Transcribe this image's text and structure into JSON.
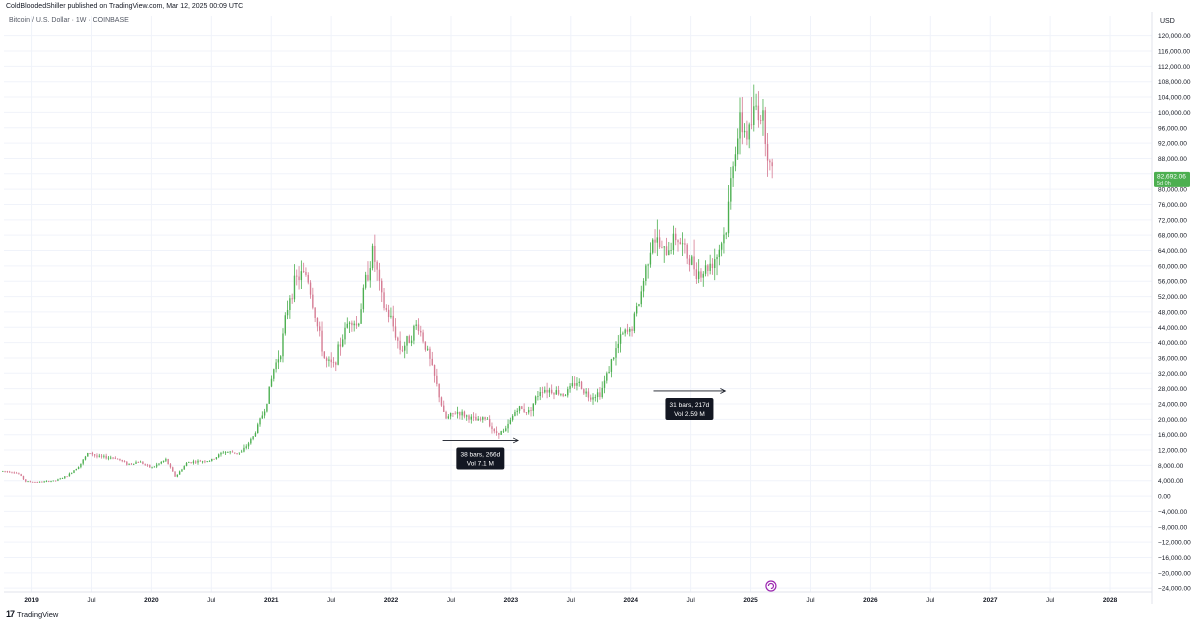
{
  "header": {
    "publish_line": "ColdBloodedShiller published on TradingView.com, Mar 12, 2025 00:09 UTC",
    "symbol_line": "Bitcoin / U.S. Dollar · 1W · COINBASE",
    "currency": "USD"
  },
  "footer": {
    "brand": "TradingView",
    "brand_icon": "tradingview-logo-icon"
  },
  "colors": {
    "up": "#4caf50",
    "down": "#d57a92",
    "price_badge": "#4caf50",
    "grid": "#f0f3fa",
    "measure": "#131722"
  },
  "chart_data": {
    "type": "candlestick",
    "symbol": "BTCUSD",
    "interval": "1W",
    "exchange": "COINBASE",
    "y_axis": {
      "min": -25000,
      "max": 122000,
      "ticks": [
        120000,
        116000,
        112000,
        108000,
        104000,
        100000,
        96000,
        92000,
        88000,
        84000,
        80000,
        76000,
        72000,
        68000,
        64000,
        60000,
        56000,
        52000,
        48000,
        44000,
        40000,
        36000,
        32000,
        28000,
        24000,
        20000,
        16000,
        12000,
        8000,
        4000,
        0,
        -4000,
        -8000,
        -12000,
        -16000,
        -20000,
        -24000
      ],
      "tick_labels": [
        "120,000.00",
        "116,000.00",
        "112,000.00",
        "108,000.00",
        "104,000.00",
        "100,000.00",
        "96,000.00",
        "92,000.00",
        "88,000.00",
        "84,000.00",
        "80,000.00",
        "76,000.00",
        "72,000.00",
        "68,000.00",
        "64,000.00",
        "60,000.00",
        "56,000.00",
        "52,000.00",
        "48,000.00",
        "44,000.00",
        "40,000.00",
        "36,000.00",
        "32,000.00",
        "28,000.00",
        "24,000.00",
        "20,000.00",
        "16,000.00",
        "12,000.00",
        "8,000.00",
        "4,000.00",
        "0.00",
        "−4,000.00",
        "−8,000.00",
        "−12,000.00",
        "−16,000.00",
        "−20,000.00",
        "−24,000.00"
      ]
    },
    "x_axis": {
      "ticks": [
        {
          "t": 2019.0,
          "label": "2019",
          "bold": true
        },
        {
          "t": 2019.5,
          "label": "Jul",
          "bold": false
        },
        {
          "t": 2020.0,
          "label": "2020",
          "bold": true
        },
        {
          "t": 2020.5,
          "label": "Jul",
          "bold": false
        },
        {
          "t": 2021.0,
          "label": "2021",
          "bold": true
        },
        {
          "t": 2021.5,
          "label": "Jul",
          "bold": false
        },
        {
          "t": 2022.0,
          "label": "2022",
          "bold": true
        },
        {
          "t": 2022.5,
          "label": "Jul",
          "bold": false
        },
        {
          "t": 2023.0,
          "label": "2023",
          "bold": true
        },
        {
          "t": 2023.5,
          "label": "Jul",
          "bold": false
        },
        {
          "t": 2024.0,
          "label": "2024",
          "bold": true
        },
        {
          "t": 2024.5,
          "label": "Jul",
          "bold": false
        },
        {
          "t": 2025.0,
          "label": "2025",
          "bold": true
        },
        {
          "t": 2025.5,
          "label": "Jul",
          "bold": false
        },
        {
          "t": 2026.0,
          "label": "2026",
          "bold": true
        },
        {
          "t": 2026.5,
          "label": "Jul",
          "bold": false
        },
        {
          "t": 2027.0,
          "label": "2027",
          "bold": true
        },
        {
          "t": 2027.5,
          "label": "Jul",
          "bold": false
        },
        {
          "t": 2028.0,
          "label": "2028",
          "bold": true
        }
      ]
    },
    "price_path": [
      [
        2018.76,
        6500
      ],
      [
        2018.85,
        6300
      ],
      [
        2018.9,
        5600
      ],
      [
        2018.95,
        3800
      ],
      [
        2019.05,
        3600
      ],
      [
        2019.2,
        4000
      ],
      [
        2019.3,
        5300
      ],
      [
        2019.4,
        8000
      ],
      [
        2019.48,
        11500
      ],
      [
        2019.55,
        10200
      ],
      [
        2019.7,
        10000
      ],
      [
        2019.8,
        8300
      ],
      [
        2019.9,
        9000
      ],
      [
        2020.0,
        7300
      ],
      [
        2020.12,
        9500
      ],
      [
        2020.2,
        5000
      ],
      [
        2020.3,
        8800
      ],
      [
        2020.5,
        9300
      ],
      [
        2020.6,
        11500
      ],
      [
        2020.75,
        11300
      ],
      [
        2020.85,
        15500
      ],
      [
        2020.95,
        23000
      ],
      [
        2021.02,
        33000
      ],
      [
        2021.08,
        38000
      ],
      [
        2021.15,
        52000
      ],
      [
        2021.22,
        57000
      ],
      [
        2021.3,
        58000
      ],
      [
        2021.38,
        45000
      ],
      [
        2021.45,
        35000
      ],
      [
        2021.52,
        34000
      ],
      [
        2021.58,
        40000
      ],
      [
        2021.66,
        47000
      ],
      [
        2021.72,
        44000
      ],
      [
        2021.78,
        55000
      ],
      [
        2021.85,
        64000
      ],
      [
        2021.93,
        50000
      ],
      [
        2022.0,
        46000
      ],
      [
        2022.08,
        38000
      ],
      [
        2022.15,
        41000
      ],
      [
        2022.22,
        45000
      ],
      [
        2022.3,
        38000
      ],
      [
        2022.38,
        29000
      ],
      [
        2022.45,
        20000
      ],
      [
        2022.55,
        22000
      ],
      [
        2022.62,
        21000
      ],
      [
        2022.72,
        19500
      ],
      [
        2022.8,
        20500
      ],
      [
        2022.86,
        16500
      ],
      [
        2022.95,
        16800
      ],
      [
        2023.05,
        23000
      ],
      [
        2023.15,
        22000
      ],
      [
        2023.25,
        28000
      ],
      [
        2023.35,
        27500
      ],
      [
        2023.45,
        26500
      ],
      [
        2023.55,
        30000
      ],
      [
        2023.65,
        26000
      ],
      [
        2023.75,
        27000
      ],
      [
        2023.85,
        36000
      ],
      [
        2023.93,
        42000
      ],
      [
        2024.0,
        43000
      ],
      [
        2024.08,
        52000
      ],
      [
        2024.18,
        68000
      ],
      [
        2024.28,
        63000
      ],
      [
        2024.38,
        68000
      ],
      [
        2024.48,
        62000
      ],
      [
        2024.58,
        58000
      ],
      [
        2024.65,
        60000
      ],
      [
        2024.72,
        63000
      ],
      [
        2024.8,
        70000
      ],
      [
        2024.86,
        90000
      ],
      [
        2024.92,
        97000
      ],
      [
        2024.98,
        94000
      ],
      [
        2025.05,
        102000
      ],
      [
        2025.11,
        98000
      ],
      [
        2025.17,
        84000
      ],
      [
        2025.19,
        82692
      ]
    ],
    "last_price": {
      "value": 82692.06,
      "label": "82,692.06",
      "sub_label": "5d 0h"
    },
    "measurements": [
      {
        "from": 2022.43,
        "to": 2023.06,
        "price_level": 14500,
        "label_bars": "38 bars, 266d",
        "label_vol": "Vol 7.1 M",
        "bars": 38,
        "days": 266,
        "volume": "7.1 M"
      },
      {
        "from": 2024.19,
        "to": 2024.79,
        "price_level": 27400,
        "label_bars": "31 bars, 217d",
        "label_vol": "Vol 2.59 M",
        "bars": 31,
        "days": 217,
        "volume": "2.59 M"
      }
    ],
    "event_icon": "halving-event-icon"
  }
}
